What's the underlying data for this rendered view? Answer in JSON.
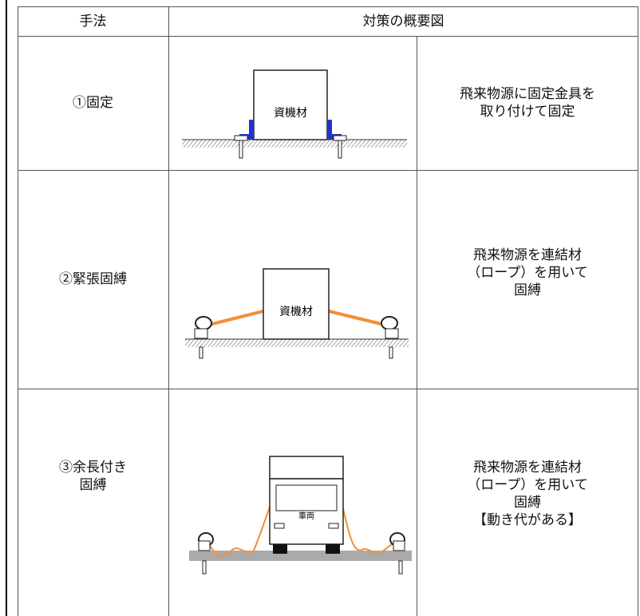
{
  "header": [
    "手法",
    "対策の概要図"
  ],
  "rows": [
    {
      "method": [
        "①固定"
      ],
      "figure_label": "資機材",
      "description": [
        "飛来物源に固定金具を",
        "取り付けて固定"
      ]
    },
    {
      "method": [
        "②緊張固縛"
      ],
      "figure_label": "資機材",
      "description": [
        "飛来物源を連結材",
        "（ロープ）を用いて",
        "固縛"
      ]
    },
    {
      "method": [
        "③余長付き",
        "固縛"
      ],
      "figure_label": "車両",
      "description": [
        "飛来物源を連結材",
        "（ロープ）を用いて",
        "固縛",
        "【動き代がある】"
      ]
    }
  ]
}
